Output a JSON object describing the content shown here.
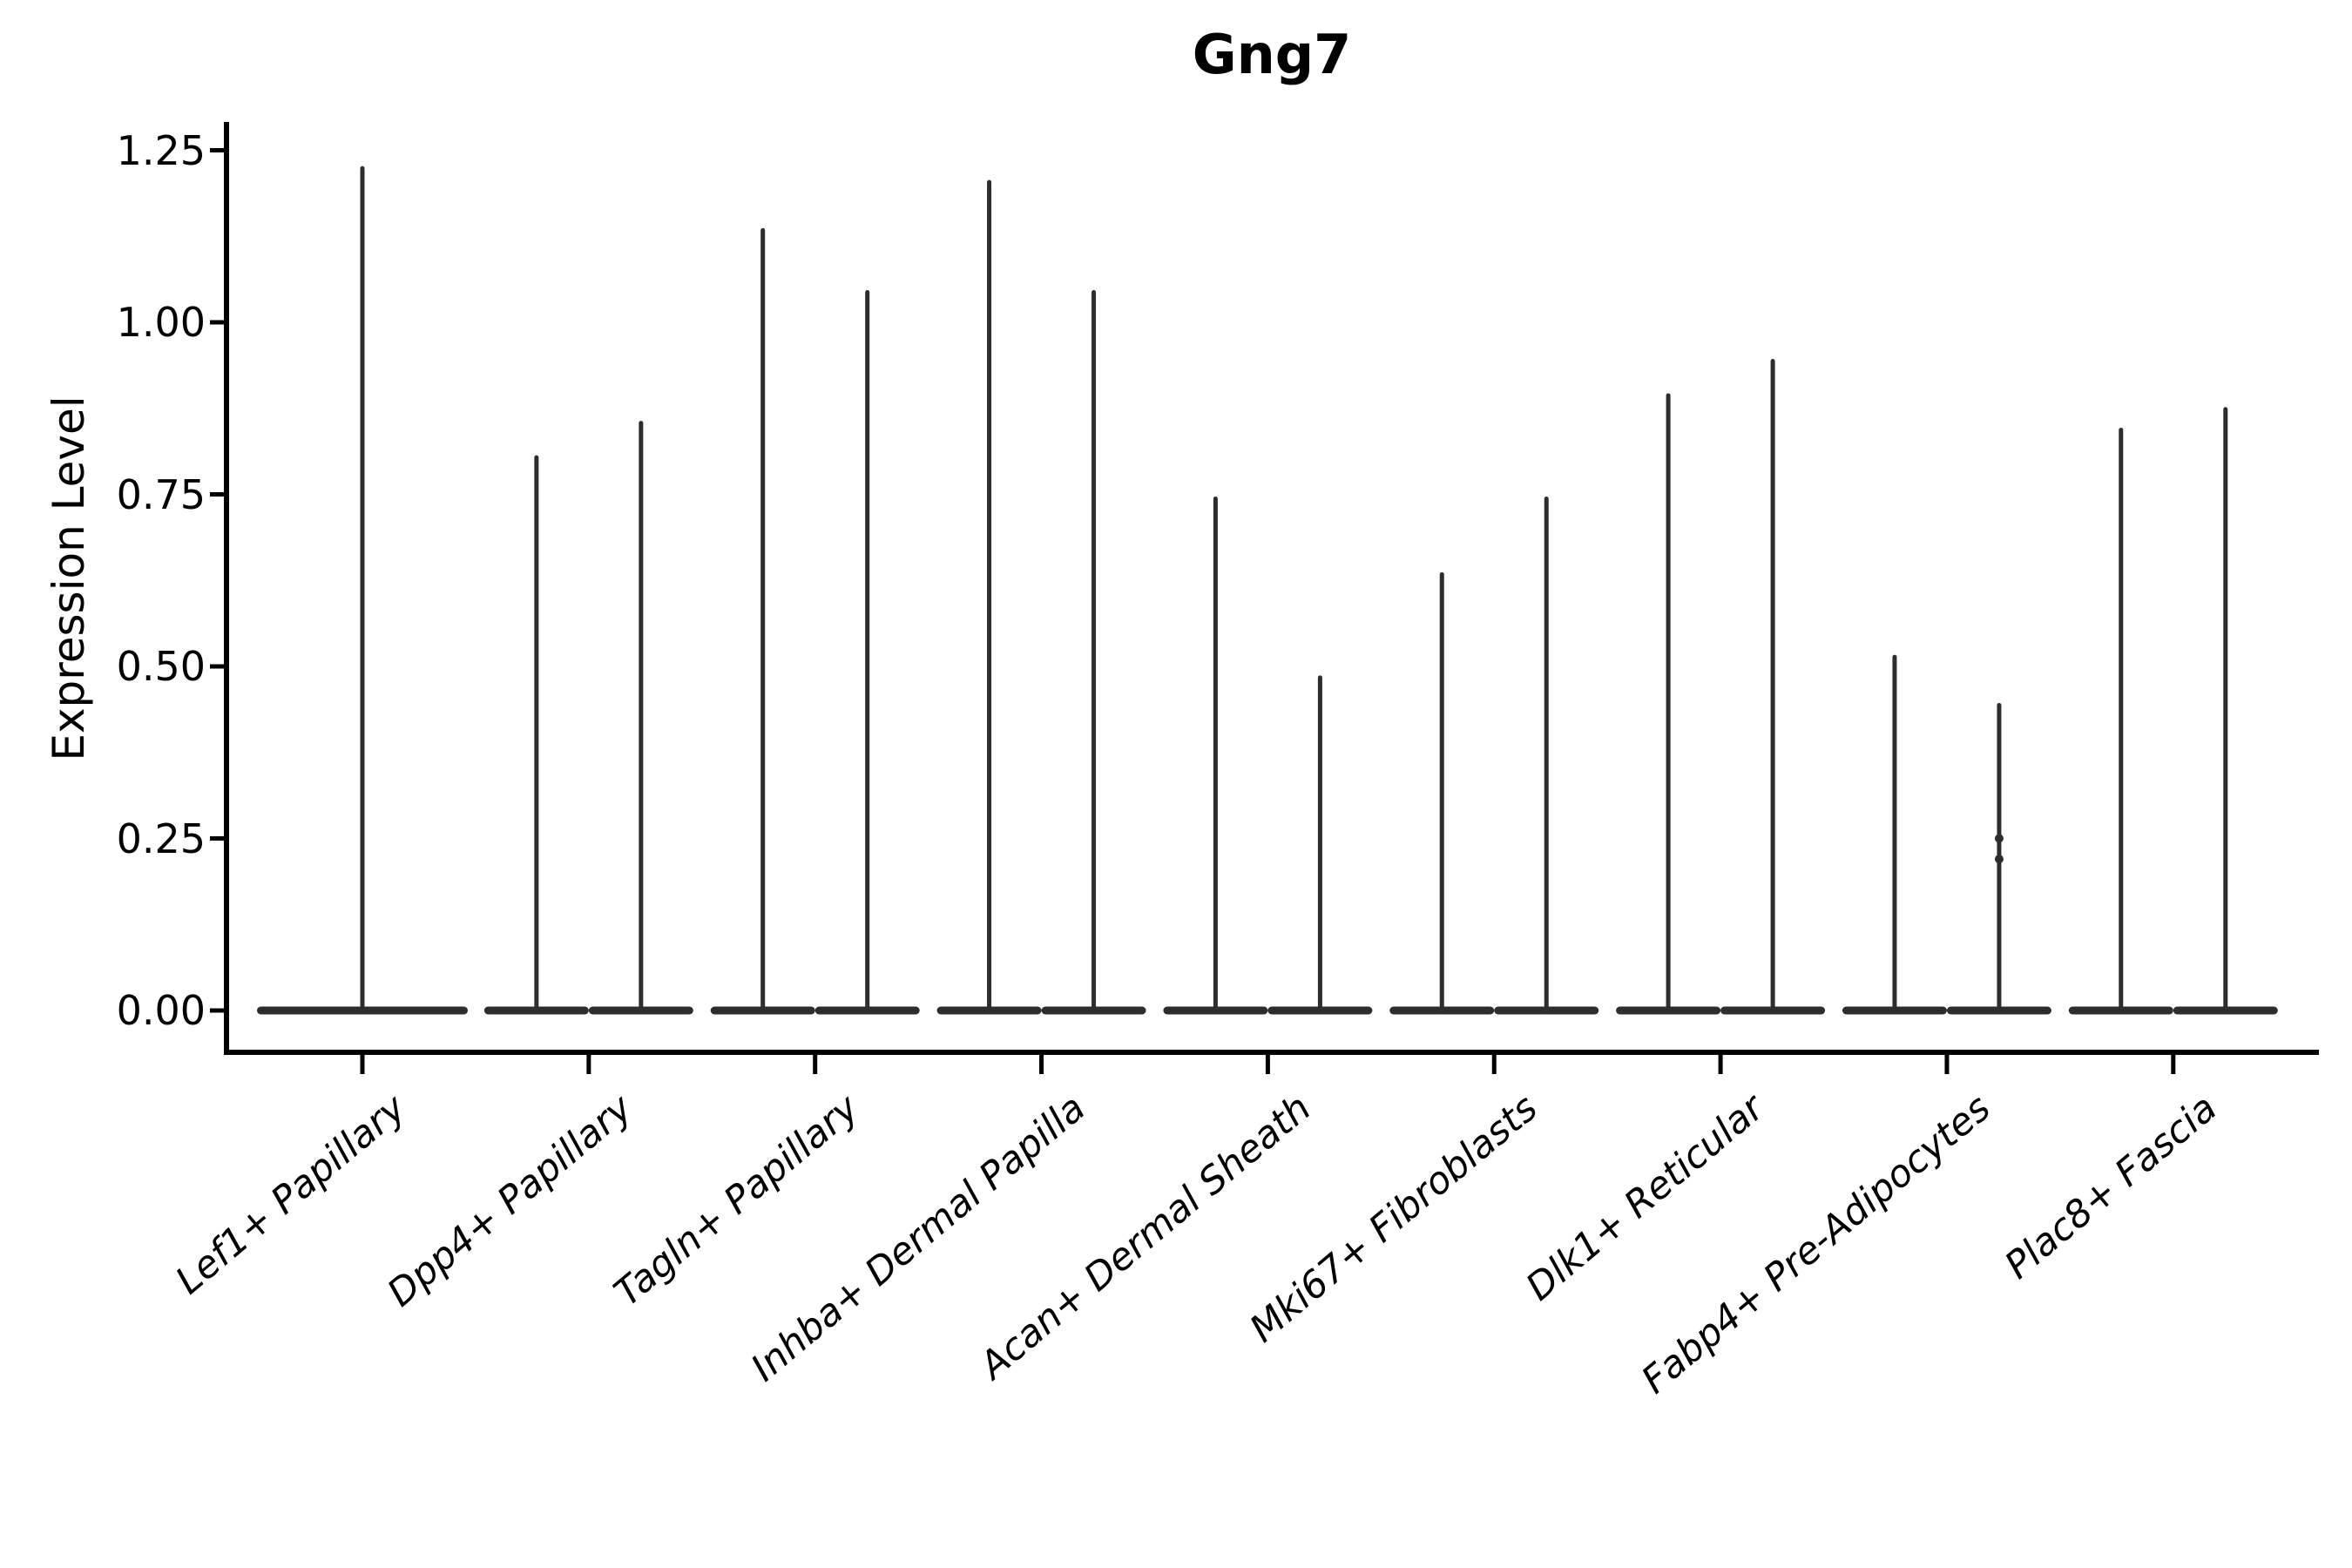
{
  "chart_data": {
    "type": "violin",
    "title": "Gng7",
    "ylabel": "Expression Level",
    "xlabel": "",
    "yticks": [
      0.0,
      0.25,
      0.5,
      0.75,
      1.0,
      1.25
    ],
    "ylim": [
      -0.06,
      1.3
    ],
    "grid": false,
    "legend": "none",
    "description": "Needle-thin expression violin plot; density is concentrated at 0 (wide flat base) with thin spikes up to the max expression value. Most categories contain two violins side by side; the first category has a single full-width violin.",
    "categories": [
      {
        "label": "Lef1+ Papillary",
        "violin_max": [
          1.23
        ]
      },
      {
        "label": "Dpp4+ Papillary",
        "violin_max": [
          0.81,
          0.86
        ]
      },
      {
        "label": "Tagln+ Papillary",
        "violin_max": [
          1.14,
          1.05
        ]
      },
      {
        "label": "Inhba+ Dermal Papilla",
        "violin_max": [
          1.21,
          1.05
        ]
      },
      {
        "label": "Acan+ Dermal Sheath",
        "violin_max": [
          0.75,
          0.49
        ]
      },
      {
        "label": "Mki67+ Fibroblasts",
        "violin_max": [
          0.64,
          0.75
        ]
      },
      {
        "label": "Dlk1+ Reticular",
        "violin_max": [
          0.9,
          0.95
        ]
      },
      {
        "label": "Fabp4+ Pre-Adipocytes",
        "violin_max": [
          0.52,
          0.45
        ]
      },
      {
        "label": "Plac8+ Fascia",
        "violin_max": [
          0.85,
          0.88
        ]
      }
    ],
    "scatter_points": [
      {
        "category_index": 7,
        "violin_index": 1,
        "values": [
          0.25,
          0.22
        ]
      }
    ],
    "colors": {
      "violin": "#2d2d2d",
      "axis": "#000000",
      "text": "#000000",
      "background": "#ffffff"
    }
  }
}
